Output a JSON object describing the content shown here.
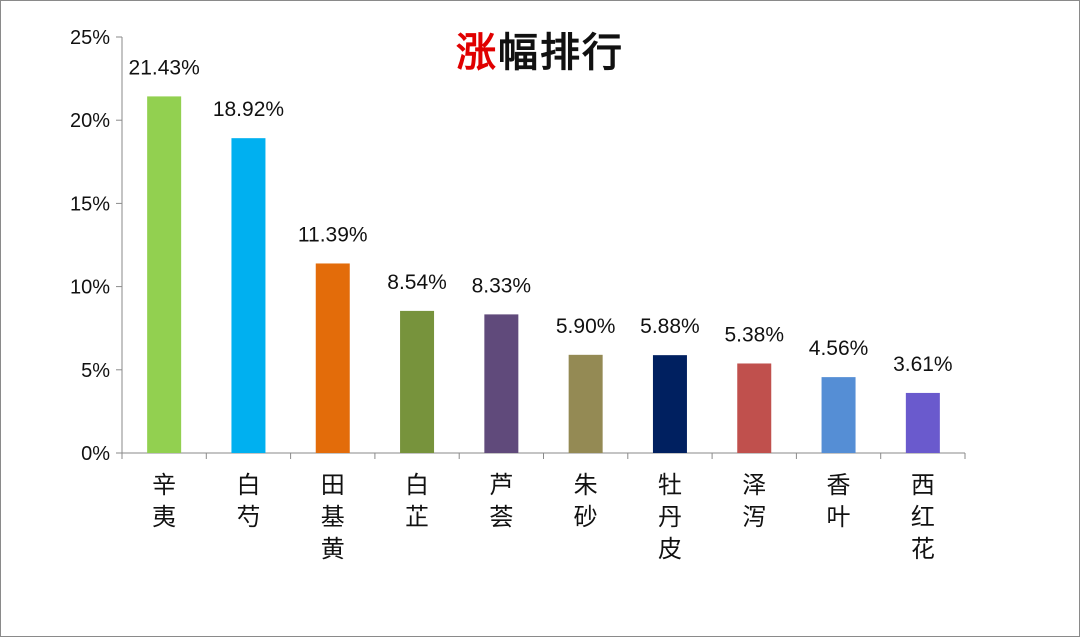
{
  "chart_data": {
    "type": "bar",
    "title_accent": "涨",
    "title_rest": "幅排行",
    "categories": [
      "辛夷",
      "白芍",
      "田基黄",
      "白芷",
      "芦荟",
      "朱砂",
      "牡丹皮",
      "泽泻",
      "香叶",
      "西红花"
    ],
    "values": [
      21.43,
      18.92,
      11.39,
      8.54,
      8.33,
      5.9,
      5.88,
      5.38,
      4.56,
      3.61
    ],
    "value_labels": [
      "21.43%",
      "18.92%",
      "11.39%",
      "8.54%",
      "8.33%",
      "5.90%",
      "5.88%",
      "5.38%",
      "4.56%",
      "3.61%"
    ],
    "colors": [
      "#92d050",
      "#00b0f0",
      "#e36c0a",
      "#77933c",
      "#604a7b",
      "#948a54",
      "#002060",
      "#c0504d",
      "#558ed5",
      "#6a5acd"
    ],
    "ylim": [
      0,
      25
    ],
    "yticks": [
      0,
      5,
      10,
      15,
      20,
      25
    ],
    "ytick_labels": [
      "0%",
      "5%",
      "10%",
      "15%",
      "20%",
      "25%"
    ],
    "xlabel": "",
    "ylabel": "",
    "grid": false,
    "legend": "none"
  }
}
